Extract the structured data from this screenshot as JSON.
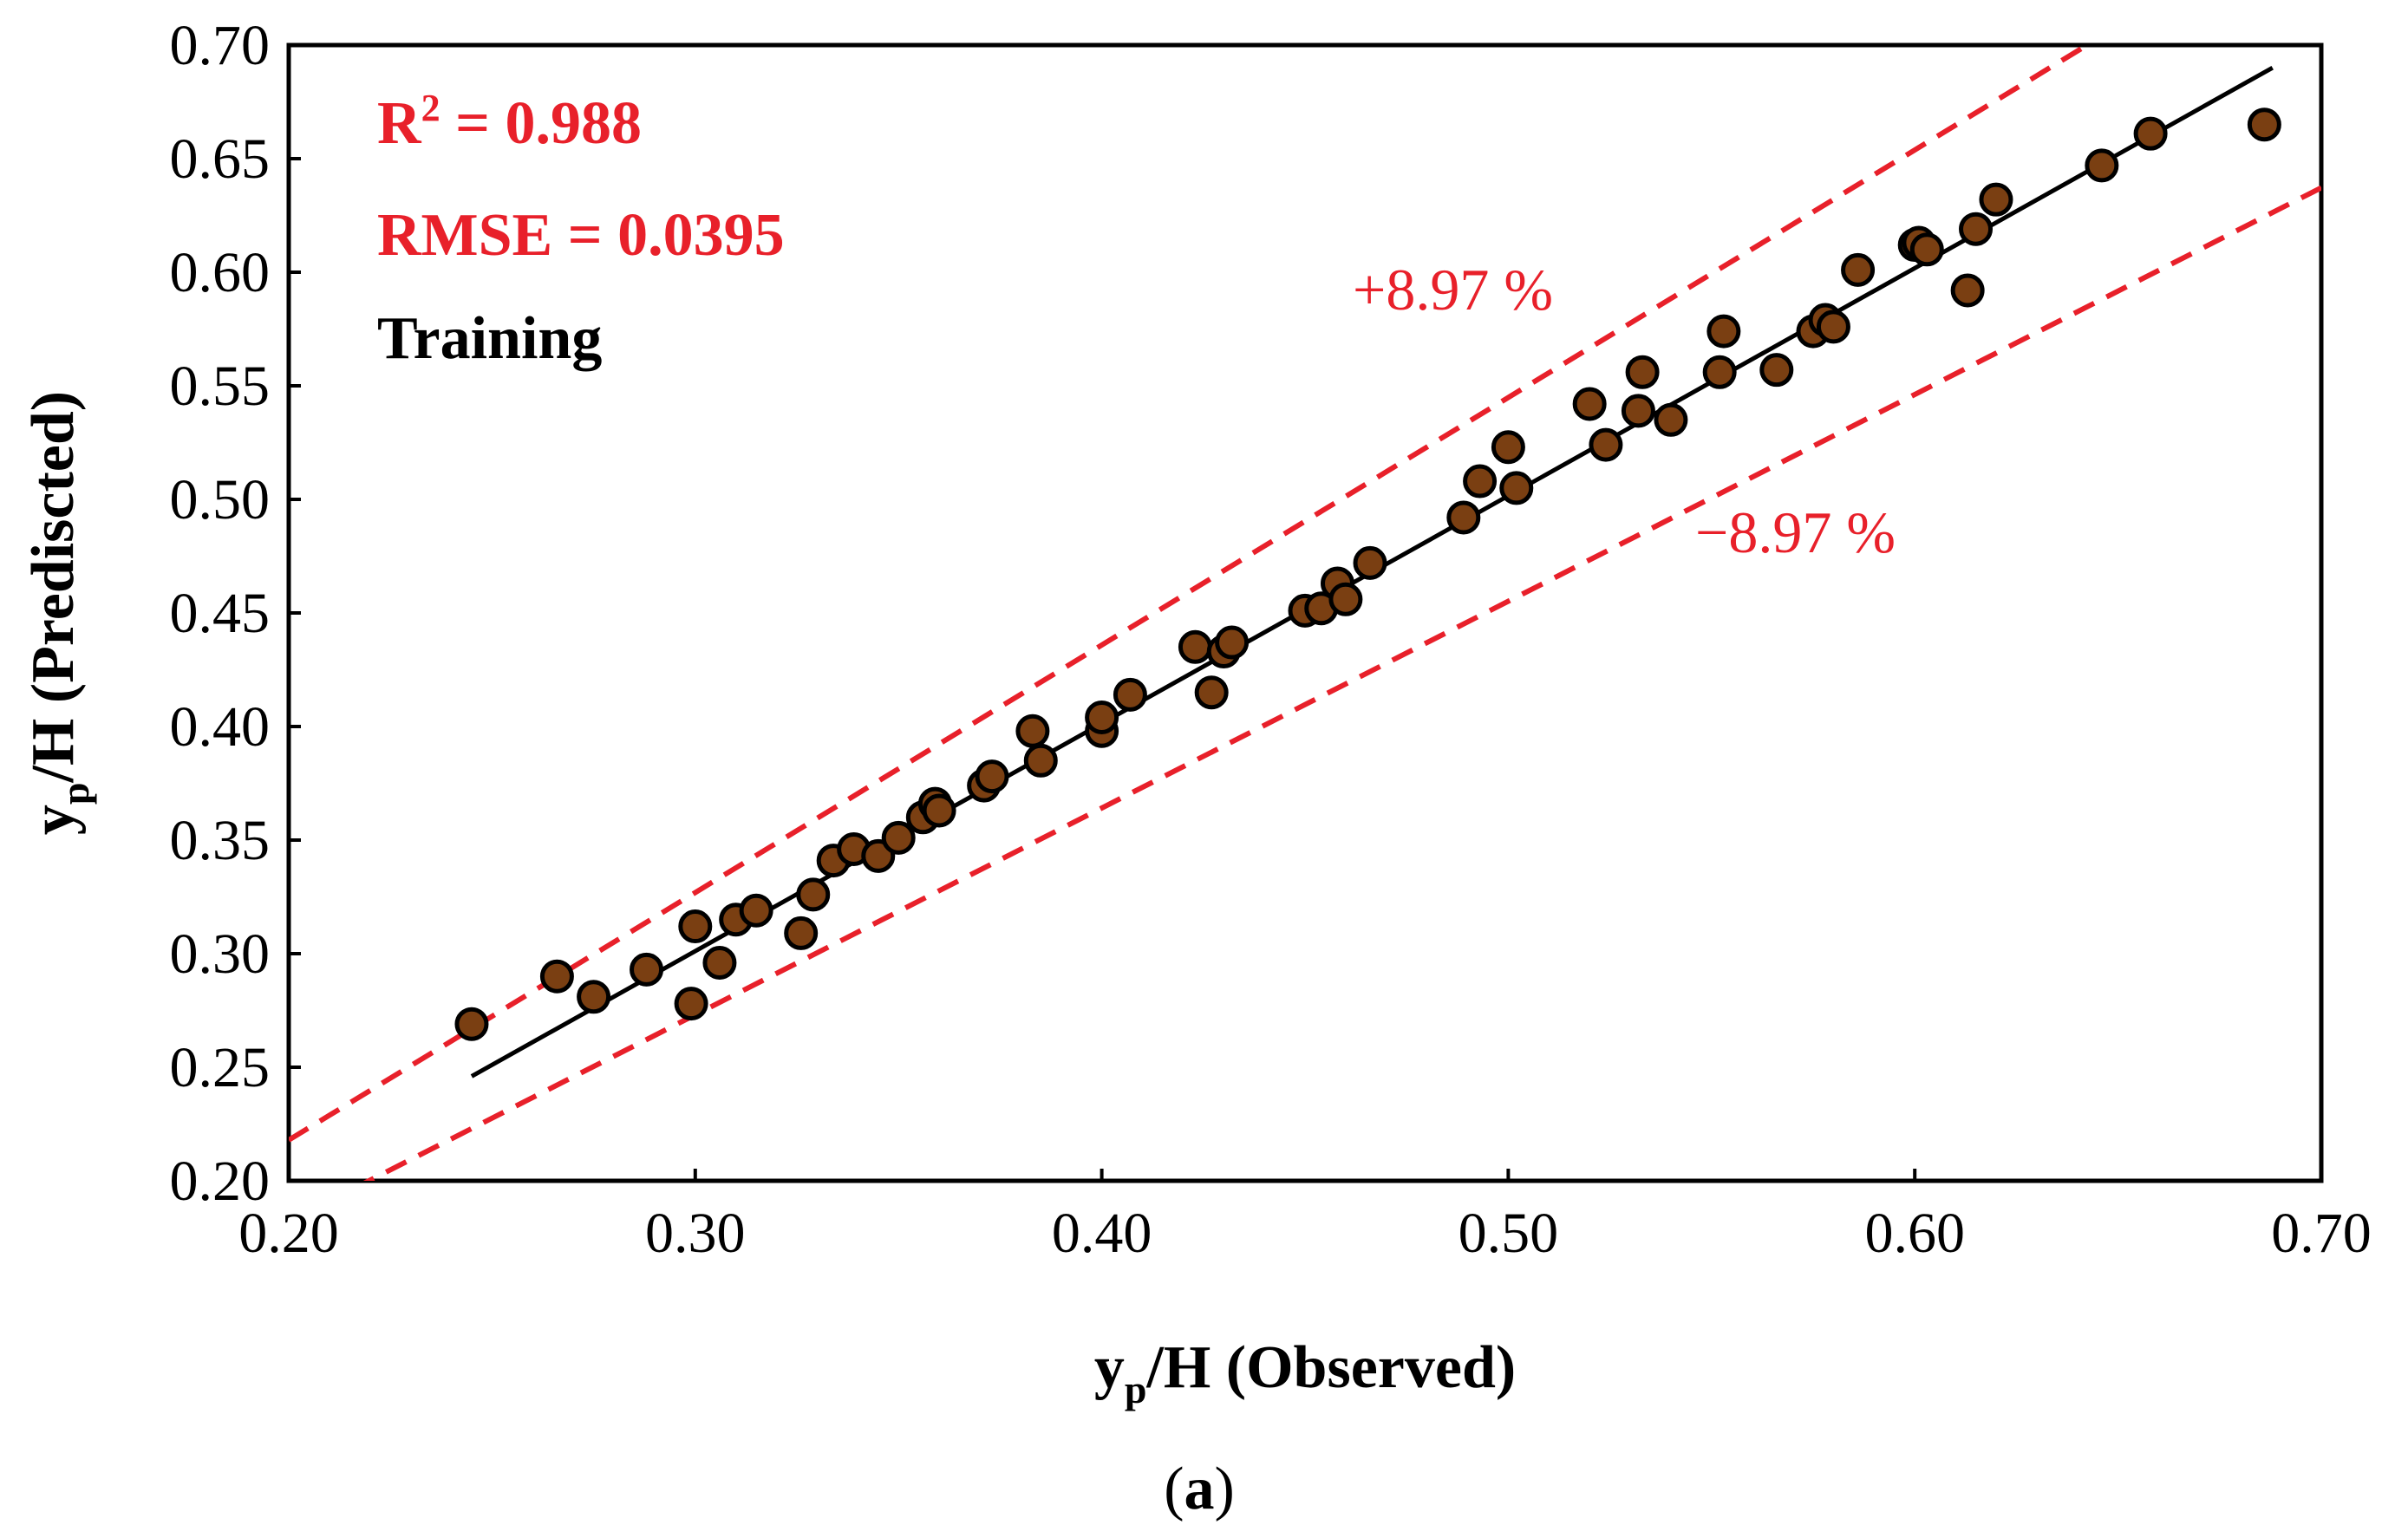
{
  "chart_data": {
    "type": "scatter",
    "title": "",
    "xlabel": {
      "main": "y",
      "sub": "p",
      "rest": "/H (Observed)"
    },
    "ylabel": {
      "main": "y",
      "sub": "p",
      "rest": "/H (Prediscted)"
    },
    "xlim": [
      0.2,
      0.7
    ],
    "ylim": [
      0.2,
      0.7
    ],
    "xticks": [
      "0.20",
      "0.30",
      "0.40",
      "0.50",
      "0.60",
      "0.70"
    ],
    "yticks": [
      "0.20",
      "0.25",
      "0.30",
      "0.35",
      "0.40",
      "0.45",
      "0.50",
      "0.55",
      "0.60",
      "0.65",
      "0.70"
    ],
    "grid": false,
    "stats": {
      "r2_base": "R",
      "r2_sup": "2",
      "r2_value": " = 0.988",
      "rmse": "RMSE = 0.0395",
      "set": "Training"
    },
    "bands": {
      "upper_label": "+8.97 %",
      "lower_label": "−8.97 %",
      "percent": 8.97
    },
    "fit_line": {
      "x": [
        0.245,
        0.688
      ],
      "y": [
        0.246,
        0.69
      ]
    },
    "series": [
      {
        "name": "Training",
        "x": [
          0.245,
          0.266,
          0.275,
          0.288,
          0.299,
          0.3,
          0.306,
          0.31,
          0.315,
          0.326,
          0.329,
          0.334,
          0.339,
          0.345,
          0.35,
          0.356,
          0.359,
          0.36,
          0.371,
          0.373,
          0.383,
          0.385,
          0.4,
          0.4,
          0.407,
          0.423,
          0.427,
          0.43,
          0.432,
          0.45,
          0.454,
          0.458,
          0.46,
          0.466,
          0.489,
          0.493,
          0.5,
          0.502,
          0.52,
          0.524,
          0.532,
          0.533,
          0.54,
          0.552,
          0.553,
          0.566,
          0.575,
          0.578,
          0.58,
          0.586,
          0.6,
          0.601,
          0.603,
          0.613,
          0.615,
          0.62,
          0.646,
          0.658,
          0.686
        ],
        "y": [
          0.269,
          0.29,
          0.281,
          0.293,
          0.278,
          0.312,
          0.296,
          0.315,
          0.319,
          0.309,
          0.326,
          0.341,
          0.346,
          0.343,
          0.351,
          0.36,
          0.366,
          0.363,
          0.374,
          0.378,
          0.398,
          0.385,
          0.398,
          0.404,
          0.414,
          0.435,
          0.415,
          0.433,
          0.437,
          0.451,
          0.452,
          0.463,
          0.456,
          0.472,
          0.492,
          0.508,
          0.523,
          0.505,
          0.542,
          0.524,
          0.539,
          0.556,
          0.535,
          0.556,
          0.574,
          0.557,
          0.574,
          0.579,
          0.576,
          0.601,
          0.612,
          0.613,
          0.61,
          0.592,
          0.619,
          0.632,
          0.647,
          0.661,
          0.665
        ]
      }
    ]
  },
  "caption": {
    "open": "(",
    "letter": "a",
    "close": ")"
  },
  "colors": {
    "point_fill": "#7a3f12",
    "point_stroke": "#000000",
    "band": "#e8202a",
    "stats": "#e8202a",
    "text": "#000000"
  }
}
